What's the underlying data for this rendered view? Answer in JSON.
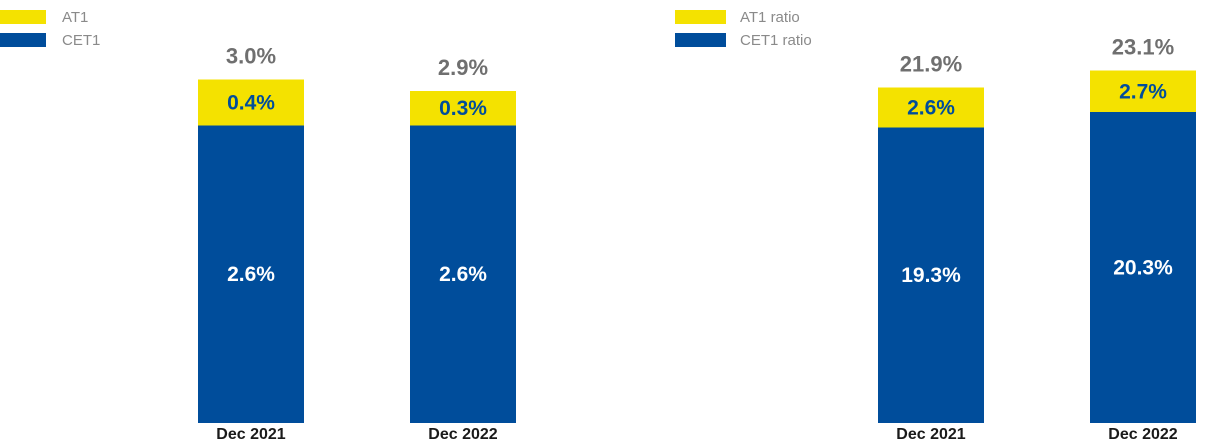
{
  "colors": {
    "at1": "#f4e200",
    "cet1": "#004d9b",
    "total_text": "#6f6f6f",
    "in_bar_text_on_yellow": "#004d9b",
    "in_bar_text_on_blue": "#ffffff"
  },
  "chart_data": [
    {
      "type": "bar",
      "stacked": true,
      "categories": [
        "Dec 2021",
        "Dec 2022"
      ],
      "series": [
        {
          "name": "CET1",
          "values": [
            2.6,
            2.6
          ],
          "labels": [
            "2.6%",
            "2.6%"
          ],
          "color": "#004d9b"
        },
        {
          "name": "AT1",
          "values": [
            0.4,
            0.3
          ],
          "labels": [
            "0.4%",
            "0.3%"
          ],
          "color": "#f4e200"
        }
      ],
      "totals": [
        3.0,
        2.9
      ],
      "total_labels": [
        "3.0%",
        "2.9%"
      ],
      "legend": {
        "placement": "top-left",
        "entries": [
          "AT1",
          "CET1"
        ]
      },
      "grid": false
    },
    {
      "type": "bar",
      "stacked": true,
      "categories": [
        "Dec 2021",
        "Dec 2022"
      ],
      "series": [
        {
          "name": "CET1 ratio",
          "values": [
            19.3,
            20.3
          ],
          "labels": [
            "19.3%",
            "20.3%"
          ],
          "color": "#004d9b"
        },
        {
          "name": "AT1 ratio",
          "values": [
            2.6,
            2.7
          ],
          "labels": [
            "2.6%",
            "2.7%"
          ],
          "color": "#f4e200"
        }
      ],
      "totals": [
        21.9,
        23.1
      ],
      "total_labels": [
        "21.9%",
        "23.1%"
      ],
      "legend": {
        "placement": "top-left",
        "entries": [
          "AT1 ratio",
          "CET1 ratio"
        ]
      },
      "grid": false
    }
  ]
}
